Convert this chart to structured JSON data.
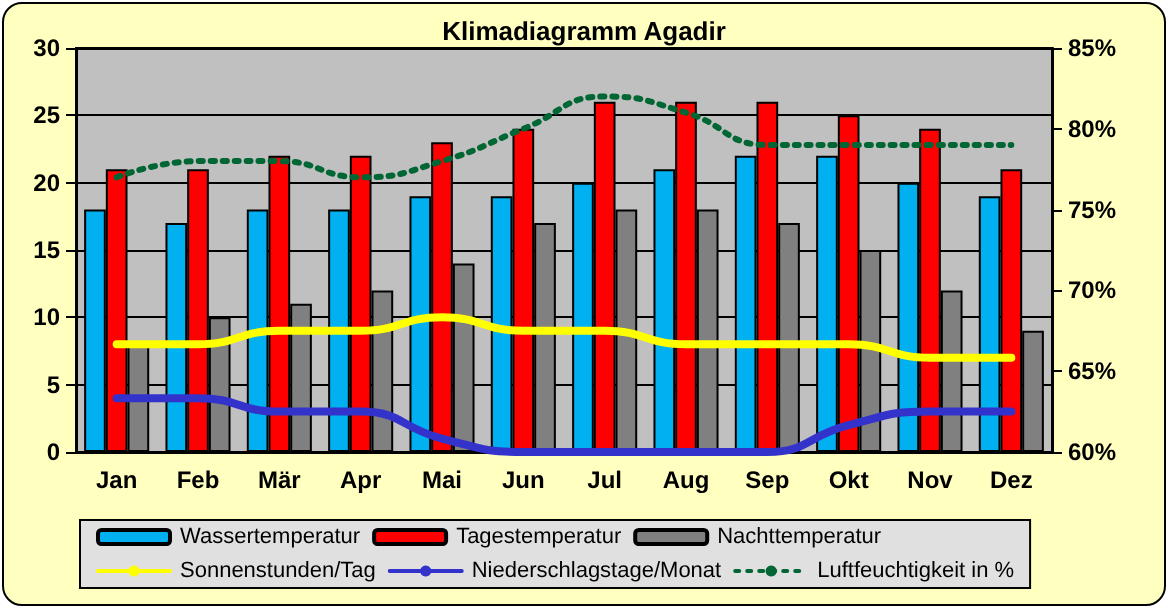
{
  "chart_data": {
    "type": "bar",
    "title": "Klimadiagramm Agadir",
    "categories": [
      "Jan",
      "Feb",
      "Mär",
      "Apr",
      "Mai",
      "Jun",
      "Jul",
      "Aug",
      "Sep",
      "Okt",
      "Nov",
      "Dez"
    ],
    "series": [
      {
        "name": "Wassertemperatur",
        "color": "#00b0f0",
        "values": [
          18,
          17,
          18,
          18,
          19,
          19,
          20,
          21,
          22,
          22,
          20,
          19
        ]
      },
      {
        "name": "Tagestemperatur",
        "color": "#ff0000",
        "values": [
          21,
          21,
          22,
          22,
          23,
          24,
          26,
          26,
          26,
          25,
          24,
          21
        ]
      },
      {
        "name": "Nachttemperatur",
        "color": "#808080",
        "values": [
          8,
          10,
          11,
          12,
          14,
          17,
          18,
          18,
          17,
          15,
          12,
          9
        ]
      },
      {
        "name": "Sonnenstunden/Tag",
        "type": "line",
        "color": "#ffff00",
        "marker": "none",
        "line_style": "solid",
        "values": [
          8,
          8,
          9,
          9,
          10,
          9,
          9,
          8,
          8,
          8,
          7,
          7
        ]
      },
      {
        "name": "Niederschlagstage/Monat",
        "type": "line",
        "color": "#3333cc",
        "marker": "none",
        "line_style": "solid",
        "values": [
          4,
          4,
          3,
          3,
          1,
          0,
          0,
          0,
          0,
          2,
          3,
          3
        ]
      },
      {
        "name": "Luftfeuchtigkeit in %",
        "type": "line",
        "axis": "y2",
        "color": "#006633",
        "marker": "none",
        "line_style": "dotted",
        "values": [
          77,
          78,
          78,
          77,
          78,
          80,
          82,
          81,
          79,
          79,
          79,
          79
        ]
      }
    ],
    "ylim": [
      0,
      30
    ],
    "yticks": [
      0,
      5,
      10,
      15,
      20,
      25,
      30
    ],
    "y2lim": [
      60,
      85
    ],
    "y2ticks": [
      {
        "value": 60,
        "label": "60%"
      },
      {
        "value": 65,
        "label": "65%"
      },
      {
        "value": 70,
        "label": "70%"
      },
      {
        "value": 75,
        "label": "75%"
      },
      {
        "value": 80,
        "label": "80%"
      },
      {
        "value": 85,
        "label": "85%"
      }
    ],
    "grid": "y",
    "legend": "bottom"
  }
}
